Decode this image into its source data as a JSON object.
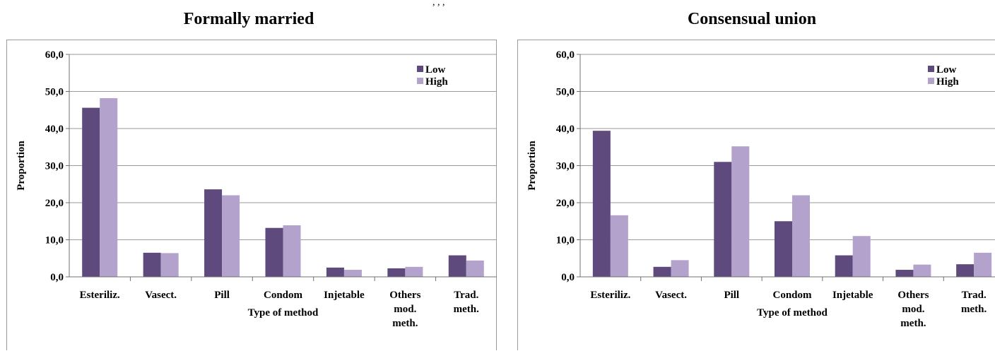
{
  "top_fragment": ", , ,",
  "colors": {
    "low": "#5e4a7c",
    "high": "#b3a2cc",
    "grid": "#9a9a9a"
  },
  "chart_data": [
    {
      "type": "bar",
      "title": "Formally married",
      "xlabel": "Type of method",
      "ylabel": "Proportion",
      "ylim": [
        0,
        60
      ],
      "yticks": [
        "0,0",
        "10,0",
        "20,0",
        "30,0",
        "40,0",
        "50,0",
        "60,0"
      ],
      "categories": [
        [
          "Esteriliz."
        ],
        [
          "Vasect."
        ],
        [
          "Pill"
        ],
        [
          "Condom"
        ],
        [
          "Injetable"
        ],
        [
          "Others",
          "mod.",
          "meth."
        ],
        [
          "Trad.",
          "meth."
        ]
      ],
      "series": [
        {
          "name": "Low",
          "values": [
            45.6,
            6.5,
            23.6,
            13.2,
            2.5,
            2.3,
            5.8
          ]
        },
        {
          "name": "High",
          "values": [
            48.2,
            6.4,
            22.0,
            13.9,
            1.9,
            2.7,
            4.4
          ]
        }
      ],
      "legend": "top-right",
      "grid": true
    },
    {
      "type": "bar",
      "title": "Consensual union",
      "xlabel": "Type of method",
      "ylabel": "Proportion",
      "ylim": [
        0,
        60
      ],
      "yticks": [
        "0,0",
        "10,0",
        "20,0",
        "30,0",
        "40,0",
        "50,0",
        "60,0"
      ],
      "categories": [
        [
          "Esteriliz."
        ],
        [
          "Vasect."
        ],
        [
          "Pill"
        ],
        [
          "Condom"
        ],
        [
          "Injetable"
        ],
        [
          "Others",
          "mod.",
          "meth."
        ],
        [
          "Trad.",
          "meth."
        ]
      ],
      "series": [
        {
          "name": "Low",
          "values": [
            39.4,
            2.7,
            31.0,
            15.0,
            5.8,
            1.9,
            3.4
          ]
        },
        {
          "name": "High",
          "values": [
            16.6,
            4.5,
            35.2,
            22.0,
            11.0,
            3.3,
            6.5
          ]
        }
      ],
      "legend": "top-right",
      "grid": true
    }
  ]
}
